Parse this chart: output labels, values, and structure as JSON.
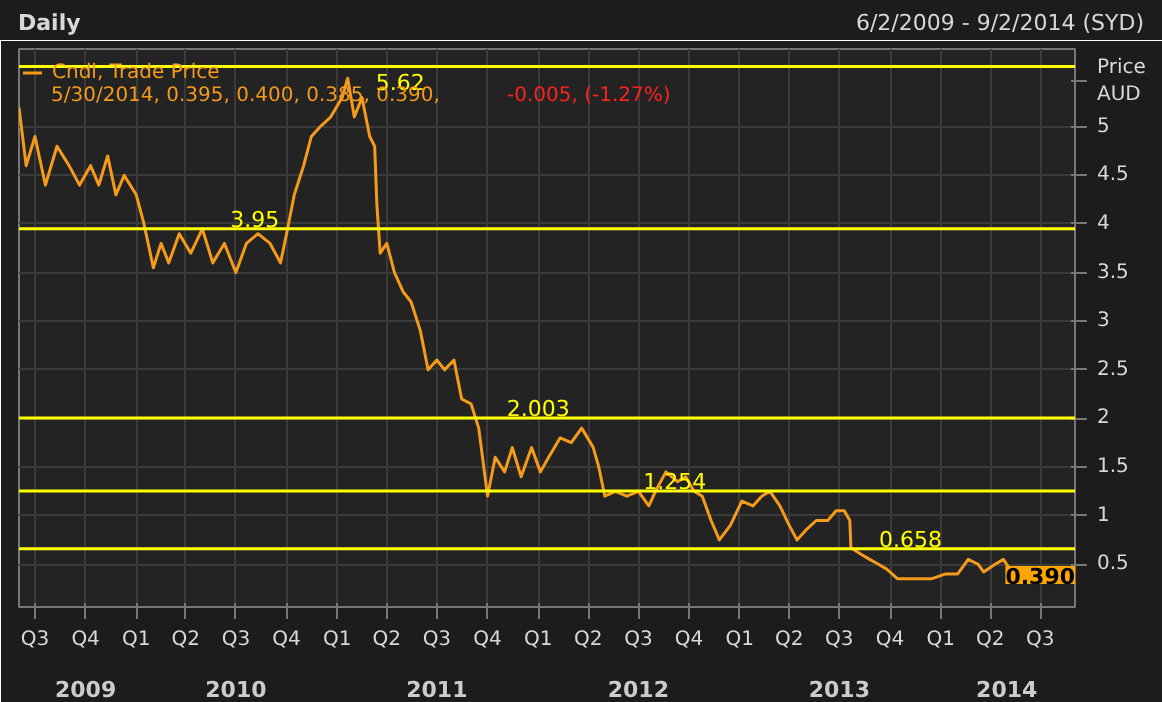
{
  "chart_data": {
    "type": "line",
    "title": "Daily",
    "subtitle": "6/2/2009 - 9/2/2014 (SYD)",
    "ylabel": "Price\nAUD",
    "legend": "top left",
    "grid": true,
    "x": [
      "2009-06-02",
      "2009-06-15",
      "2009-07-01",
      "2009-07-20",
      "2009-08-10",
      "2009-09-01",
      "2009-09-20",
      "2009-10-10",
      "2009-10-25",
      "2009-11-10",
      "2009-11-25",
      "2009-12-10",
      "2010-01-01",
      "2010-01-15",
      "2010-02-01",
      "2010-02-15",
      "2010-03-01",
      "2010-03-20",
      "2010-04-10",
      "2010-05-01",
      "2010-05-20",
      "2010-06-10",
      "2010-07-01",
      "2010-07-20",
      "2010-08-10",
      "2010-09-01",
      "2010-09-20",
      "2010-10-01",
      "2010-10-15",
      "2010-11-01",
      "2010-11-15",
      "2010-12-01",
      "2010-12-20",
      "2011-01-10",
      "2011-01-20",
      "2011-02-01",
      "2011-02-15",
      "2011-03-01",
      "2011-03-10",
      "2011-03-14",
      "2011-03-20",
      "2011-04-01",
      "2011-04-15",
      "2011-05-01",
      "2011-05-15",
      "2011-06-01",
      "2011-06-15",
      "2011-07-01",
      "2011-07-15",
      "2011-08-01",
      "2011-08-15",
      "2011-09-01",
      "2011-09-15",
      "2011-10-01",
      "2011-10-15",
      "2011-11-01",
      "2011-11-15",
      "2011-12-01",
      "2011-12-20",
      "2012-01-05",
      "2012-01-20",
      "2012-02-10",
      "2012-03-01",
      "2012-03-20",
      "2012-04-10",
      "2012-04-20",
      "2012-05-01",
      "2012-05-20",
      "2012-06-10",
      "2012-07-01",
      "2012-07-20",
      "2012-08-01",
      "2012-08-20",
      "2012-09-10",
      "2012-09-25",
      "2012-10-10",
      "2012-10-25",
      "2012-11-10",
      "2012-11-25",
      "2012-12-15",
      "2013-01-05",
      "2013-01-25",
      "2013-02-10",
      "2013-02-25",
      "2013-03-15",
      "2013-04-01",
      "2013-04-15",
      "2013-05-01",
      "2013-05-20",
      "2013-06-10",
      "2013-06-25",
      "2013-07-10",
      "2013-07-20",
      "2013-07-22",
      "2013-08-10",
      "2013-08-25",
      "2013-09-10",
      "2013-09-25",
      "2013-10-15",
      "2013-11-15",
      "2013-12-15",
      "2014-01-10",
      "2014-02-01",
      "2014-02-20",
      "2014-03-10",
      "2014-03-20",
      "2014-04-10",
      "2014-04-25",
      "2014-05-10",
      "2014-05-30"
    ],
    "series": [
      {
        "name": "Cndl, Trade Price",
        "color": "#f59a1b",
        "values": [
          5.2,
          4.6,
          4.9,
          4.4,
          4.8,
          4.6,
          4.4,
          4.6,
          4.4,
          4.7,
          4.3,
          4.5,
          4.3,
          4.0,
          3.55,
          3.8,
          3.6,
          3.9,
          3.7,
          3.95,
          3.6,
          3.8,
          3.5,
          3.8,
          3.9,
          3.8,
          3.6,
          3.9,
          4.3,
          4.6,
          4.9,
          5.0,
          5.1,
          5.3,
          5.5,
          5.1,
          5.3,
          4.9,
          4.8,
          4.2,
          3.7,
          3.8,
          3.5,
          3.3,
          3.2,
          2.9,
          2.5,
          2.6,
          2.5,
          2.6,
          2.2,
          2.15,
          1.9,
          1.2,
          1.6,
          1.45,
          1.7,
          1.4,
          1.7,
          1.45,
          1.6,
          1.8,
          1.75,
          1.9,
          1.7,
          1.5,
          1.2,
          1.25,
          1.2,
          1.25,
          1.1,
          1.25,
          1.45,
          1.35,
          1.4,
          1.25,
          1.2,
          0.95,
          0.75,
          0.9,
          1.15,
          1.1,
          1.2,
          1.25,
          1.1,
          0.9,
          0.75,
          0.85,
          0.95,
          0.95,
          1.05,
          1.05,
          0.95,
          0.67,
          0.6,
          0.55,
          0.5,
          0.45,
          0.35,
          0.35,
          0.35,
          0.4,
          0.4,
          0.55,
          0.5,
          0.42,
          0.5,
          0.55,
          0.42,
          0.39
        ]
      }
    ],
    "xlim": [
      "2009-06-02",
      "2014-09-02"
    ],
    "xticks": [
      {
        "value": "2009-07-01",
        "label": "Q3"
      },
      {
        "value": "2009-10-01",
        "label": "Q4"
      },
      {
        "value": "2010-01-01",
        "label": "Q1"
      },
      {
        "value": "2010-04-01",
        "label": "Q2"
      },
      {
        "value": "2010-07-01",
        "label": "Q3"
      },
      {
        "value": "2010-10-01",
        "label": "Q4"
      },
      {
        "value": "2011-01-01",
        "label": "Q1"
      },
      {
        "value": "2011-04-01",
        "label": "Q2"
      },
      {
        "value": "2011-07-01",
        "label": "Q3"
      },
      {
        "value": "2011-10-01",
        "label": "Q4"
      },
      {
        "value": "2012-01-01",
        "label": "Q1"
      },
      {
        "value": "2012-04-01",
        "label": "Q2"
      },
      {
        "value": "2012-07-01",
        "label": "Q3"
      },
      {
        "value": "2012-10-01",
        "label": "Q4"
      },
      {
        "value": "2013-01-01",
        "label": "Q1"
      },
      {
        "value": "2013-04-01",
        "label": "Q2"
      },
      {
        "value": "2013-07-01",
        "label": "Q3"
      },
      {
        "value": "2013-10-01",
        "label": "Q4"
      },
      {
        "value": "2014-01-01",
        "label": "Q1"
      },
      {
        "value": "2014-04-01",
        "label": "Q2"
      },
      {
        "value": "2014-07-01",
        "label": "Q3"
      }
    ],
    "ylim": [
      0.06,
      5.8
    ],
    "yticks": [
      0.5,
      1,
      1.5,
      2,
      2.5,
      3,
      3.5,
      4,
      4.5,
      5
    ],
    "ref_lines": [
      {
        "axis": "y",
        "value": 5.62,
        "label": "5.62",
        "color": "#ffff00"
      },
      {
        "axis": "y",
        "value": 3.95,
        "label": "3.95",
        "color": "#ffff00"
      },
      {
        "axis": "y",
        "value": 2.003,
        "label": "2.003",
        "color": "#ffff00"
      },
      {
        "axis": "y",
        "value": 1.254,
        "label": "1.254",
        "color": "#ffff00"
      },
      {
        "axis": "y",
        "value": 0.658,
        "label": "0.658",
        "color": "#ffff00"
      }
    ],
    "annotations": [
      "5/30/2014, 0.395, 0.400, 0.385, 0.390,",
      "-0.005, (-1.27%)",
      "0.390"
    ],
    "x2lim": [
      "2009-06-02",
      "2014-09-02"
    ],
    "x2ticks": [
      {
        "value": "2009-10-01",
        "label": "2009"
      },
      {
        "value": "2010-07-01",
        "label": "2010"
      },
      {
        "value": "2011-07-01",
        "label": "2011"
      },
      {
        "value": "2012-07-01",
        "label": "2012"
      },
      {
        "value": "2013-07-01",
        "label": "2013"
      },
      {
        "value": "2014-05-01",
        "label": "2014"
      }
    ]
  }
}
